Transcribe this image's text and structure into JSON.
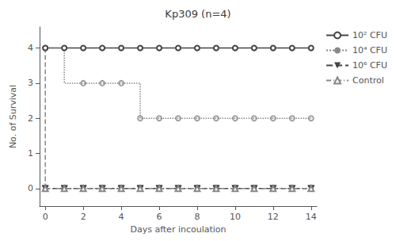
{
  "chart_data": {
    "type": "line",
    "title": "Kp309 (n=4)",
    "x_label": "Days after incoulation",
    "y_label": "No. of Survival",
    "xlim": [
      -0.3,
      14.3
    ],
    "ylim": [
      -0.5,
      4.6
    ],
    "xticks": [
      0,
      2,
      4,
      6,
      8,
      10,
      12,
      14
    ],
    "yticks": [
      0,
      1,
      2,
      3,
      4
    ],
    "grid": false,
    "legend": "upper right",
    "series": [
      {
        "name": "10² CFU",
        "type": "line",
        "x": [
          0,
          1,
          2,
          3,
          4,
          5,
          6,
          7,
          8,
          9,
          10,
          11,
          12,
          13,
          14
        ],
        "values": [
          4,
          4,
          4,
          4,
          4,
          4,
          4,
          4,
          4,
          4,
          4,
          4,
          4,
          4,
          4
        ],
        "color": "#444444",
        "line_style": "solid",
        "marker": "open_circle"
      },
      {
        "name": "10⁴ CFU",
        "type": "line",
        "x": [
          0,
          1,
          1,
          2,
          3,
          4,
          5,
          5,
          6,
          7,
          8,
          9,
          10,
          11,
          12,
          13,
          14
        ],
        "values": [
          4,
          4,
          3,
          3,
          3,
          3,
          3,
          2,
          2,
          2,
          2,
          2,
          2,
          2,
          2,
          2,
          2
        ],
        "color": "#888888",
        "line_style": "dotted",
        "marker": "none"
      },
      {
        "type": "scatter",
        "x": [
          0,
          2,
          3,
          4,
          5,
          6,
          7,
          8,
          9,
          10,
          11,
          12,
          13,
          14
        ],
        "values": [
          4,
          3,
          3,
          3,
          2,
          2,
          2,
          2,
          2,
          2,
          2,
          2,
          2,
          2
        ],
        "color": "#888888",
        "marker": "open_circle"
      },
      {
        "name": "10⁶ CFU",
        "type": "line",
        "x": [
          0,
          1,
          2,
          3,
          4,
          5,
          6,
          7,
          8,
          9,
          10,
          11,
          12,
          13,
          14
        ],
        "values": [
          0,
          0,
          0,
          0,
          0,
          0,
          0,
          0,
          0,
          0,
          0,
          0,
          0,
          0,
          0
        ],
        "color": "#444444",
        "line_style": "dashed",
        "marker": "triangle_down"
      },
      {
        "name": "Control",
        "type": "line",
        "x": [
          0,
          1,
          2,
          3,
          4,
          5,
          6,
          7,
          8,
          9,
          10,
          11,
          12,
          13,
          14
        ],
        "values": [
          0,
          0,
          0,
          0,
          0,
          0,
          0,
          0,
          0,
          0,
          0,
          0,
          0,
          0,
          0
        ],
        "color": "#888888",
        "line_style": "dashdot",
        "marker": "open_triangle_up"
      },
      {
        "type": "line",
        "x": [
          0,
          0
        ],
        "values": [
          4,
          0
        ],
        "color": "#888888",
        "line_style": "dashed",
        "marker": "none"
      }
    ]
  }
}
